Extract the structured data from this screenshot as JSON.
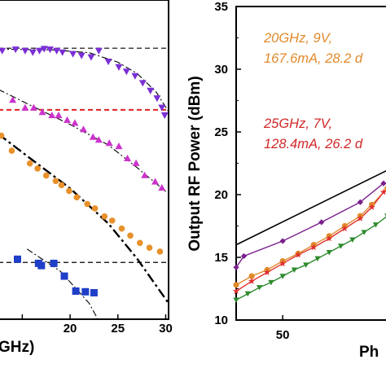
{
  "chart_data": [
    {
      "panel": "left",
      "type": "scatter",
      "xlabel": "GHz)",
      "xlim": [
        12.5,
        30.3
      ],
      "ylim": [
        0,
        1
      ],
      "x_ticks": [
        "20",
        "25",
        "30"
      ],
      "colors": {
        "purple": "#7b2fd6",
        "magenta": "#cc33cc",
        "orange": "#e8902a",
        "blue": "#1f3fc8",
        "red_dashed": "#e02020"
      },
      "series": [
        {
          "marker": "triangle-down",
          "color": "purple",
          "x": [
            12.9,
            14.3,
            15.3,
            16.1,
            16.8,
            17.3,
            17.9,
            18.6,
            19.2,
            20.3,
            21.2,
            22.2,
            23.0,
            24.0,
            25.1,
            25.9,
            26.8,
            27.6,
            28.4,
            29.1,
            29.6,
            29.9
          ],
          "y": [
            0.841,
            0.845,
            0.841,
            0.836,
            0.841,
            0.847,
            0.845,
            0.841,
            0.836,
            0.831,
            0.826,
            0.821,
            0.841,
            0.807,
            0.79,
            0.776,
            0.762,
            0.74,
            0.716,
            0.692,
            0.663,
            0.639
          ]
        },
        {
          "marker": "triangle-up",
          "color": "magenta",
          "x": [
            14.0,
            15.3,
            16.2,
            17.1,
            18.1,
            18.8,
            19.7,
            20.5,
            21.4,
            22.4,
            23.0,
            24.1,
            25.1,
            26.0,
            26.9,
            27.8,
            28.9,
            29.6
          ],
          "y": [
            0.687,
            0.663,
            0.663,
            0.649,
            0.639,
            0.639,
            0.624,
            0.615,
            0.595,
            0.571,
            0.562,
            0.552,
            0.542,
            0.504,
            0.489,
            0.451,
            0.431,
            0.412
          ]
        },
        {
          "marker": "circle",
          "color": "orange",
          "x": [
            12.8,
            13.9,
            15.8,
            16.6,
            17.5,
            18.5,
            19.1,
            19.9,
            20.7,
            21.8,
            22.6,
            23.6,
            24.4,
            25.4,
            26.3,
            27.3,
            28.3,
            29.4
          ],
          "y": [
            0.575,
            0.528,
            0.488,
            0.472,
            0.45,
            0.433,
            0.42,
            0.402,
            0.382,
            0.361,
            0.347,
            0.322,
            0.309,
            0.284,
            0.262,
            0.239,
            0.224,
            0.212
          ]
        },
        {
          "marker": "square",
          "color": "blue",
          "x": [
            14.5,
            16.7,
            17.0,
            18.3,
            19.4,
            20.6,
            21.6,
            22.5
          ],
          "y": [
            0.188,
            0.175,
            0.168,
            0.175,
            0.135,
            0.088,
            0.086,
            0.083
          ]
        }
      ],
      "reference_lines": [
        {
          "style": "dashed",
          "color": "#000000",
          "y": 0.849
        },
        {
          "style": "dashed",
          "color": "red_dashed",
          "y": 0.656
        },
        {
          "style": "dashed",
          "color": "#000000",
          "y": 0.178
        }
      ],
      "fit_curves": [
        {
          "style": "dash-dot",
          "x": [
            12.5,
            18,
            22,
            25,
            27,
            29,
            30.3
          ],
          "y": [
            0.846,
            0.844,
            0.835,
            0.805,
            0.77,
            0.712,
            0.65
          ]
        },
        {
          "style": "dash-dot",
          "x": [
            12.5,
            16,
            20,
            24,
            27,
            30
          ],
          "y": [
            0.72,
            0.668,
            0.61,
            0.546,
            0.475,
            0.4
          ]
        },
        {
          "style": "dash-dot-bold",
          "x": [
            12.5,
            16,
            20,
            24,
            27,
            30.3
          ],
          "y": [
            0.58,
            0.5,
            0.41,
            0.3,
            0.19,
            0.05
          ]
        },
        {
          "style": "dash-dot",
          "x": [
            15.5,
            19,
            22,
            22.9
          ],
          "y": [
            0.22,
            0.15,
            0.05,
            0.0
          ]
        }
      ]
    },
    {
      "panel": "right",
      "type": "line",
      "ylabel": "Output RF Power (dBm)",
      "xlabel": "Ph",
      "xlim": [
        38,
        80
      ],
      "ylim": [
        10,
        35
      ],
      "y_ticks": [
        "10",
        "15",
        "20",
        "25",
        "30",
        "35"
      ],
      "x_ticks": [
        "50"
      ],
      "annotations": [
        {
          "lines": [
            "20GHz, 9V,",
            "167.6mA, 28.2 d"
          ],
          "color": "#e08a2c"
        },
        {
          "lines": [
            "25GHz, 7V,",
            "128.4mA, 26.2 d"
          ],
          "color": "#d02828"
        }
      ],
      "series": [
        {
          "color": "#000000",
          "marker": "none",
          "x": [
            38,
            80
          ],
          "y": [
            16.0,
            22.4
          ]
        },
        {
          "color": "#7a1f8c",
          "marker": "diamond",
          "x": [
            38,
            40,
            50,
            60,
            70,
            76
          ],
          "y": [
            14.2,
            15.1,
            16.3,
            17.8,
            19.4,
            20.9
          ]
        },
        {
          "color": "#e08a2c",
          "marker": "circle",
          "x": [
            38,
            42,
            46,
            50,
            54,
            58,
            62,
            66,
            70,
            73,
            77
          ],
          "y": [
            12.8,
            13.5,
            14.0,
            14.7,
            15.3,
            16.0,
            16.7,
            17.5,
            18.3,
            19.2,
            20.5
          ]
        },
        {
          "color": "#e03030",
          "marker": "star",
          "x": [
            38,
            42,
            46,
            50,
            54,
            58,
            62,
            66,
            70,
            73,
            76,
            78
          ],
          "y": [
            12.3,
            13.1,
            13.8,
            14.5,
            15.2,
            15.8,
            16.5,
            17.3,
            18.1,
            19.0,
            20.2,
            20.9
          ]
        },
        {
          "color": "#2e8b2e",
          "marker": "triangle-down",
          "x": [
            38,
            41,
            44,
            47,
            50,
            53,
            56,
            59,
            62,
            65,
            68,
            71,
            74,
            77,
            80
          ],
          "y": [
            11.6,
            12.1,
            12.6,
            13.0,
            13.5,
            14.0,
            14.4,
            14.9,
            15.4,
            15.9,
            16.4,
            17.0,
            17.6,
            18.3,
            19.0
          ]
        }
      ]
    }
  ]
}
